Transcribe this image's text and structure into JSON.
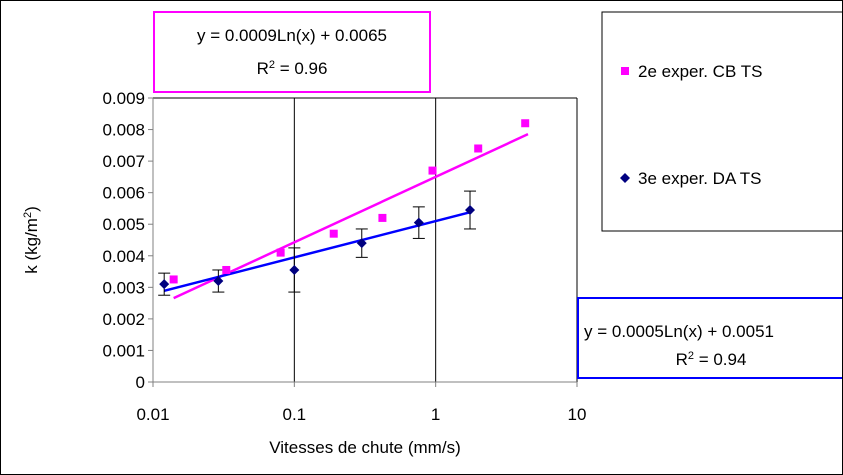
{
  "chart_data": {
    "type": "scatter",
    "xlabel": "Vitesses de chute (mm/s)",
    "ylabel": "k (kg/m²)",
    "x_scale": "log",
    "xlim": [
      0.01,
      10
    ],
    "ylim": [
      0,
      0.009
    ],
    "x_ticks": [
      "0.01",
      "0.1",
      "1",
      "10"
    ],
    "y_ticks": [
      "0",
      "0.001",
      "0.002",
      "0.003",
      "0.004",
      "0.005",
      "0.006",
      "0.007",
      "0.008",
      "0.009"
    ],
    "grid": "vertical",
    "legend_position": "right",
    "series": [
      {
        "name": "2e exper. CB TS",
        "color": "#ff00ff",
        "marker": "square",
        "x": [
          0.014,
          0.033,
          0.08,
          0.19,
          0.42,
          0.95,
          2.0,
          4.3
        ],
        "y": [
          0.00325,
          0.00355,
          0.0041,
          0.0047,
          0.0052,
          0.0067,
          0.0074,
          0.0082
        ],
        "trendline": {
          "equation": "y = 0.0009Ln(x) + 0.0065",
          "r2": "R² = 0.96",
          "a": 0.0009,
          "b": 0.0065,
          "x_range": [
            0.014,
            4.5
          ],
          "box_color": "#ff00ff"
        }
      },
      {
        "name": "3e exper. DA TS",
        "color": "#000080",
        "marker": "diamond",
        "x": [
          0.012,
          0.029,
          0.1,
          0.3,
          0.76,
          1.75
        ],
        "y": [
          0.0031,
          0.0032,
          0.00355,
          0.0044,
          0.00505,
          0.00545
        ],
        "y_err": [
          0.00035,
          0.00035,
          0.0007,
          0.00045,
          0.0005,
          0.0006
        ],
        "trendline": {
          "equation": "y = 0.0005Ln(x) + 0.0051",
          "r2": "R² = 0.94",
          "a": 0.0005,
          "b": 0.0051,
          "x_range": [
            0.012,
            1.8
          ],
          "line_color": "#0000ff",
          "box_color": "#0000ff"
        }
      }
    ]
  }
}
